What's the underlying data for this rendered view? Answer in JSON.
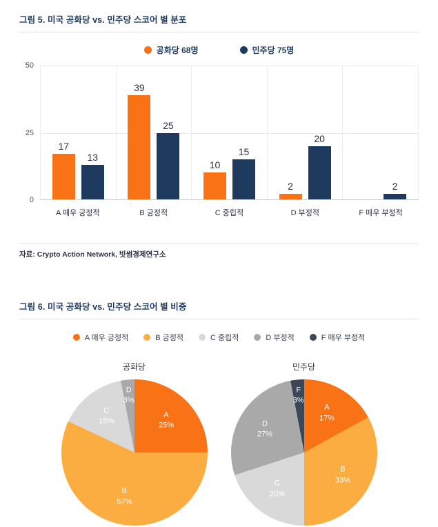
{
  "colors": {
    "republican_orange": "#F97316",
    "democrat_navy": "#1F3A5F",
    "grade_b_amber": "#FBAD41",
    "grade_c_light_gray": "#D9D9D9",
    "grade_d_gray": "#A9A9A9",
    "grade_f_dark": "#3B4656",
    "title_navy": "#1F3A5F"
  },
  "chart_data": [
    {
      "type": "bar",
      "title": "그림 5. 미국 공화당 vs. 민주당 스코어 별 분포",
      "categories": [
        "A 매우 긍정적",
        "B 긍정적",
        "C 중립적",
        "D 부정적",
        "F 매우 부정적"
      ],
      "series": [
        {
          "name": "공화당 68명",
          "color": "#F97316",
          "values": [
            17,
            39,
            10,
            2,
            0
          ]
        },
        {
          "name": "민주당 75명",
          "color": "#1F3A5F",
          "values": [
            13,
            25,
            15,
            20,
            2
          ]
        }
      ],
      "ylim": [
        0,
        50
      ],
      "yticks": [
        0,
        25,
        50
      ],
      "grid": true,
      "legend_position": "top",
      "source": "자료: Crypto Action Network, 빗썸경제연구소"
    },
    {
      "type": "pie",
      "title": "그림 6. 미국 공화당 vs. 민주당 스코어 별 비중",
      "legend_position": "top",
      "legend": [
        {
          "label": "A 매우 긍정적",
          "color": "#F97316"
        },
        {
          "label": "B 긍정적",
          "color": "#FBAD41"
        },
        {
          "label": "C 중립적",
          "color": "#D9D9D9"
        },
        {
          "label": "D 부정적",
          "color": "#A9A9A9"
        },
        {
          "label": "F 매우 부정적",
          "color": "#3B4656"
        }
      ],
      "pies": [
        {
          "name": "공화당",
          "unit": "%",
          "slices": [
            {
              "label": "A",
              "value": 25
            },
            {
              "label": "B",
              "value": 57
            },
            {
              "label": "C",
              "value": 15
            },
            {
              "label": "D",
              "value": 3
            }
          ]
        },
        {
          "name": "민주당",
          "unit": "%",
          "slices": [
            {
              "label": "A",
              "value": 17
            },
            {
              "label": "B",
              "value": 33
            },
            {
              "label": "C",
              "value": 20
            },
            {
              "label": "D",
              "value": 27
            },
            {
              "label": "F",
              "value": 3
            }
          ]
        }
      ]
    }
  ]
}
